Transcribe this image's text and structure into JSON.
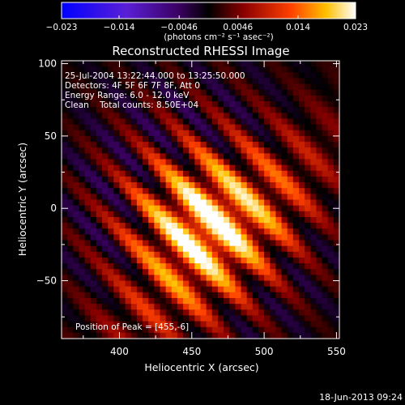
{
  "colorbar": {
    "tick_labels": [
      "−0.023",
      "−0.014",
      "−0.0046",
      "0.0046",
      "0.014",
      "0.023"
    ],
    "tick_values": [
      -0.023,
      -0.014,
      -0.0046,
      0.0046,
      0.014,
      0.023
    ],
    "range": [
      -0.023,
      0.023
    ],
    "units": "(photons cm⁻² s⁻¹ asec⁻²)"
  },
  "chart_data": {
    "type": "heatmap",
    "title": "Reconstructed RHESSI Image",
    "xlabel": "Heliocentric X (arcsec)",
    "ylabel": "Heliocentric Y (arcsec)",
    "xlim": [
      360,
      552
    ],
    "ylim": [
      -90,
      102
    ],
    "x_ticks": [
      400,
      450,
      500,
      550
    ],
    "y_ticks": [
      -50,
      0,
      50,
      100
    ],
    "x_tick_labels": [
      "400",
      "450",
      "500",
      "550"
    ],
    "y_tick_labels": [
      "−50",
      "0",
      "50",
      "100"
    ],
    "colormap": [
      "#0000ff",
      "#5a1fd6",
      "#4a007a",
      "#000000",
      "#8b0000",
      "#ff4000",
      "#ffc000",
      "#ffffff"
    ],
    "peak": [
      455,
      -6
    ],
    "annotations": {
      "line1": "25-Jul-2004 13:22:44.000 to 13:25:50.000",
      "line2": "Detectors: 4F 5F 6F 7F 8F, Att 0",
      "line3": "Energy Range: 6.0 - 12.0 keV",
      "line4": "Clean    Total counts: 8.50E+04",
      "peak_label": "Position of Peak = [455,-6]"
    }
  },
  "footer": {
    "date": "18-Jun-2013 09:24"
  }
}
